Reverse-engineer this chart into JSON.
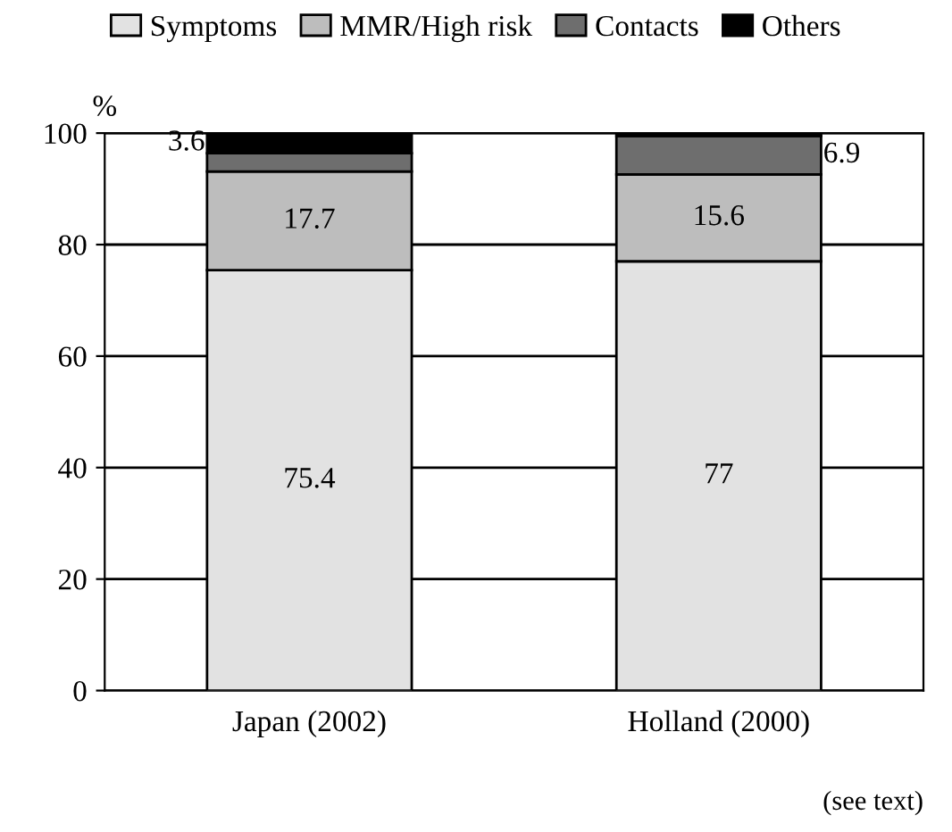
{
  "chart_data": {
    "type": "bar",
    "stacked": true,
    "categories": [
      "Japan (2002)",
      "Holland (2000)"
    ],
    "series": [
      {
        "name": "Symptoms",
        "color": "#e2e2e2",
        "values": [
          75.4,
          77
        ],
        "value_labels": [
          "75.4",
          "77"
        ]
      },
      {
        "name": "MMR/High risk",
        "color": "#bdbdbd",
        "values": [
          17.7,
          15.6
        ],
        "value_labels": [
          "17.7",
          "15.6"
        ]
      },
      {
        "name": "Contacts",
        "color": "#6e6e6e",
        "values": [
          3.3,
          6.9
        ],
        "value_labels": [
          null,
          "6.9"
        ]
      },
      {
        "name": "Others",
        "color": "#000000",
        "values": [
          3.6,
          0.5
        ],
        "value_labels": [
          "3.6",
          null
        ]
      }
    ],
    "ylabel": "%",
    "ylim": [
      0,
      100
    ],
    "yticks": [
      0,
      20,
      40,
      60,
      80,
      100
    ],
    "grid": "y",
    "legend": "top",
    "annotations": [
      "(see text)"
    ]
  }
}
